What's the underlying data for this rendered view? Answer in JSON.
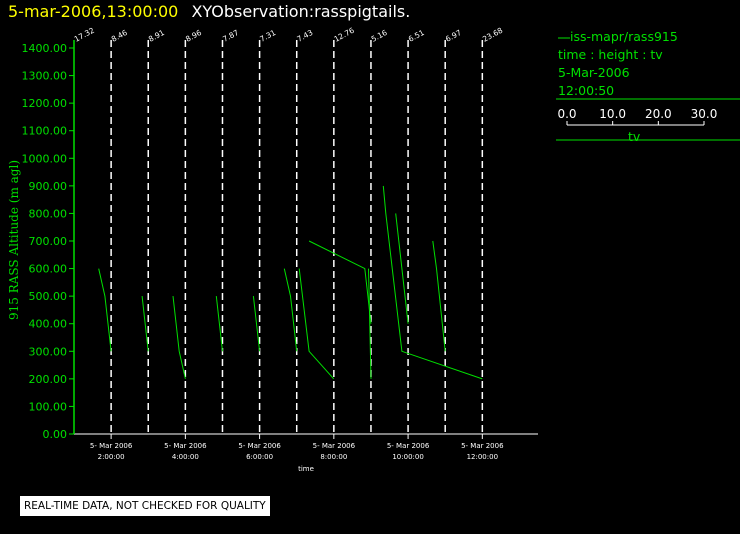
{
  "header": {
    "datetime": "5-mar-2006,13:00:00",
    "title": "XYObservation:rasspigtails."
  },
  "legend": {
    "series_label": "iss-mapr/rass915",
    "line2": "time : height : tv",
    "line3": "5-Mar-2006",
    "line4": "12:00:50",
    "scale_ticks": [
      "0.0",
      "10.0",
      "20.0",
      "30.0"
    ],
    "scale_label": "tv"
  },
  "notice": "REAL-TIME DATA, NOT CHECKED FOR QUALITY",
  "colors": {
    "background": "#000000",
    "axis": "#ffffff",
    "series": "#00e000",
    "title_date": "#ffff00"
  },
  "chart_data": {
    "type": "line",
    "xlabel": "time",
    "ylabel": "915 RASS Altitude (m agl)",
    "xlim": [
      "05-Mar-2006 01:00",
      "05-Mar-2006 13:30"
    ],
    "ylim": [
      0,
      1400
    ],
    "y_ticks": [
      "0.00",
      "100.00",
      "200.00",
      "300.00",
      "400.00",
      "500.00",
      "600.00",
      "700.00",
      "800.00",
      "900.00",
      "1000.00",
      "1100.00",
      "1200.00",
      "1300.00",
      "1400.00"
    ],
    "x_ticks": [
      {
        "time": "05-Mar-2006 02:00",
        "date": "5- Mar 2006",
        "clock": "2:00:00"
      },
      {
        "time": "05-Mar-2006 04:00",
        "date": "5- Mar 2006",
        "clock": "4:00:00"
      },
      {
        "time": "05-Mar-2006 06:00",
        "date": "5- Mar 2006",
        "clock": "6:00:00"
      },
      {
        "time": "05-Mar-2006 08:00",
        "date": "5- Mar 2006",
        "clock": "8:00:00"
      },
      {
        "time": "05-Mar-2006 10:00",
        "date": "5- Mar 2006",
        "clock": "10:00:00"
      },
      {
        "time": "05-Mar-2006 12:00",
        "date": "5- Mar 2006",
        "clock": "12:00:00"
      }
    ],
    "profiles": [
      {
        "time": "05-Mar-2006 01:00",
        "label": "17.32"
      },
      {
        "time": "05-Mar-2006 02:00",
        "label": "8.46"
      },
      {
        "time": "05-Mar-2006 03:00",
        "label": "8.91"
      },
      {
        "time": "05-Mar-2006 04:00",
        "label": "8.96"
      },
      {
        "time": "05-Mar-2006 05:00",
        "label": "7.87"
      },
      {
        "time": "05-Mar-2006 06:00",
        "label": "7.31"
      },
      {
        "time": "05-Mar-2006 07:00",
        "label": "7.43"
      },
      {
        "time": "05-Mar-2006 08:00",
        "label": "12.76"
      },
      {
        "time": "05-Mar-2006 09:00",
        "label": "5.16"
      },
      {
        "time": "05-Mar-2006 10:00",
        "label": "6.51"
      },
      {
        "time": "05-Mar-2006 11:00",
        "label": "6.97"
      },
      {
        "time": "05-Mar-2006 12:00",
        "label": "23.68"
      }
    ],
    "series": [
      {
        "points": [
          [
            "05-Mar-2006 01:40",
            600
          ],
          [
            "05-Mar-2006 01:50",
            500
          ],
          [
            "05-Mar-2006 02:00",
            300
          ]
        ]
      },
      {
        "points": [
          [
            "05-Mar-2006 02:50",
            500
          ],
          [
            "05-Mar-2006 03:00",
            300
          ]
        ]
      },
      {
        "points": [
          [
            "05-Mar-2006 03:40",
            500
          ],
          [
            "05-Mar-2006 03:50",
            300
          ],
          [
            "05-Mar-2006 04:00",
            200
          ]
        ]
      },
      {
        "points": [
          [
            "05-Mar-2006 04:50",
            500
          ],
          [
            "05-Mar-2006 05:00",
            300
          ]
        ]
      },
      {
        "points": [
          [
            "05-Mar-2006 05:50",
            500
          ],
          [
            "05-Mar-2006 06:00",
            300
          ]
        ]
      },
      {
        "points": [
          [
            "05-Mar-2006 06:40",
            600
          ],
          [
            "05-Mar-2006 06:50",
            500
          ],
          [
            "05-Mar-2006 07:00",
            300
          ]
        ]
      },
      {
        "points": [
          [
            "05-Mar-2006 07:04",
            600
          ],
          [
            "05-Mar-2006 07:20",
            300
          ],
          [
            "05-Mar-2006 08:00",
            200
          ]
        ]
      },
      {
        "points": [
          [
            "05-Mar-2006 07:20",
            700
          ],
          [
            "05-Mar-2006 08:50",
            600
          ],
          [
            "05-Mar-2006 09:00",
            400
          ]
        ]
      },
      {
        "points": [
          [
            "05-Mar-2006 08:56",
            600
          ],
          [
            "05-Mar-2006 09:00",
            200
          ]
        ]
      },
      {
        "points": [
          [
            "05-Mar-2006 09:20",
            900
          ],
          [
            "05-Mar-2006 09:24",
            800
          ],
          [
            "05-Mar-2006 09:50",
            300
          ],
          [
            "05-Mar-2006 12:00",
            200
          ]
        ]
      },
      {
        "points": [
          [
            "05-Mar-2006 09:40",
            800
          ],
          [
            "05-Mar-2006 10:00",
            400
          ]
        ]
      },
      {
        "points": [
          [
            "05-Mar-2006 10:40",
            700
          ],
          [
            "05-Mar-2006 10:46",
            600
          ],
          [
            "05-Mar-2006 11:00",
            300
          ]
        ]
      }
    ],
    "grid": false,
    "legend_position": "top-right"
  }
}
